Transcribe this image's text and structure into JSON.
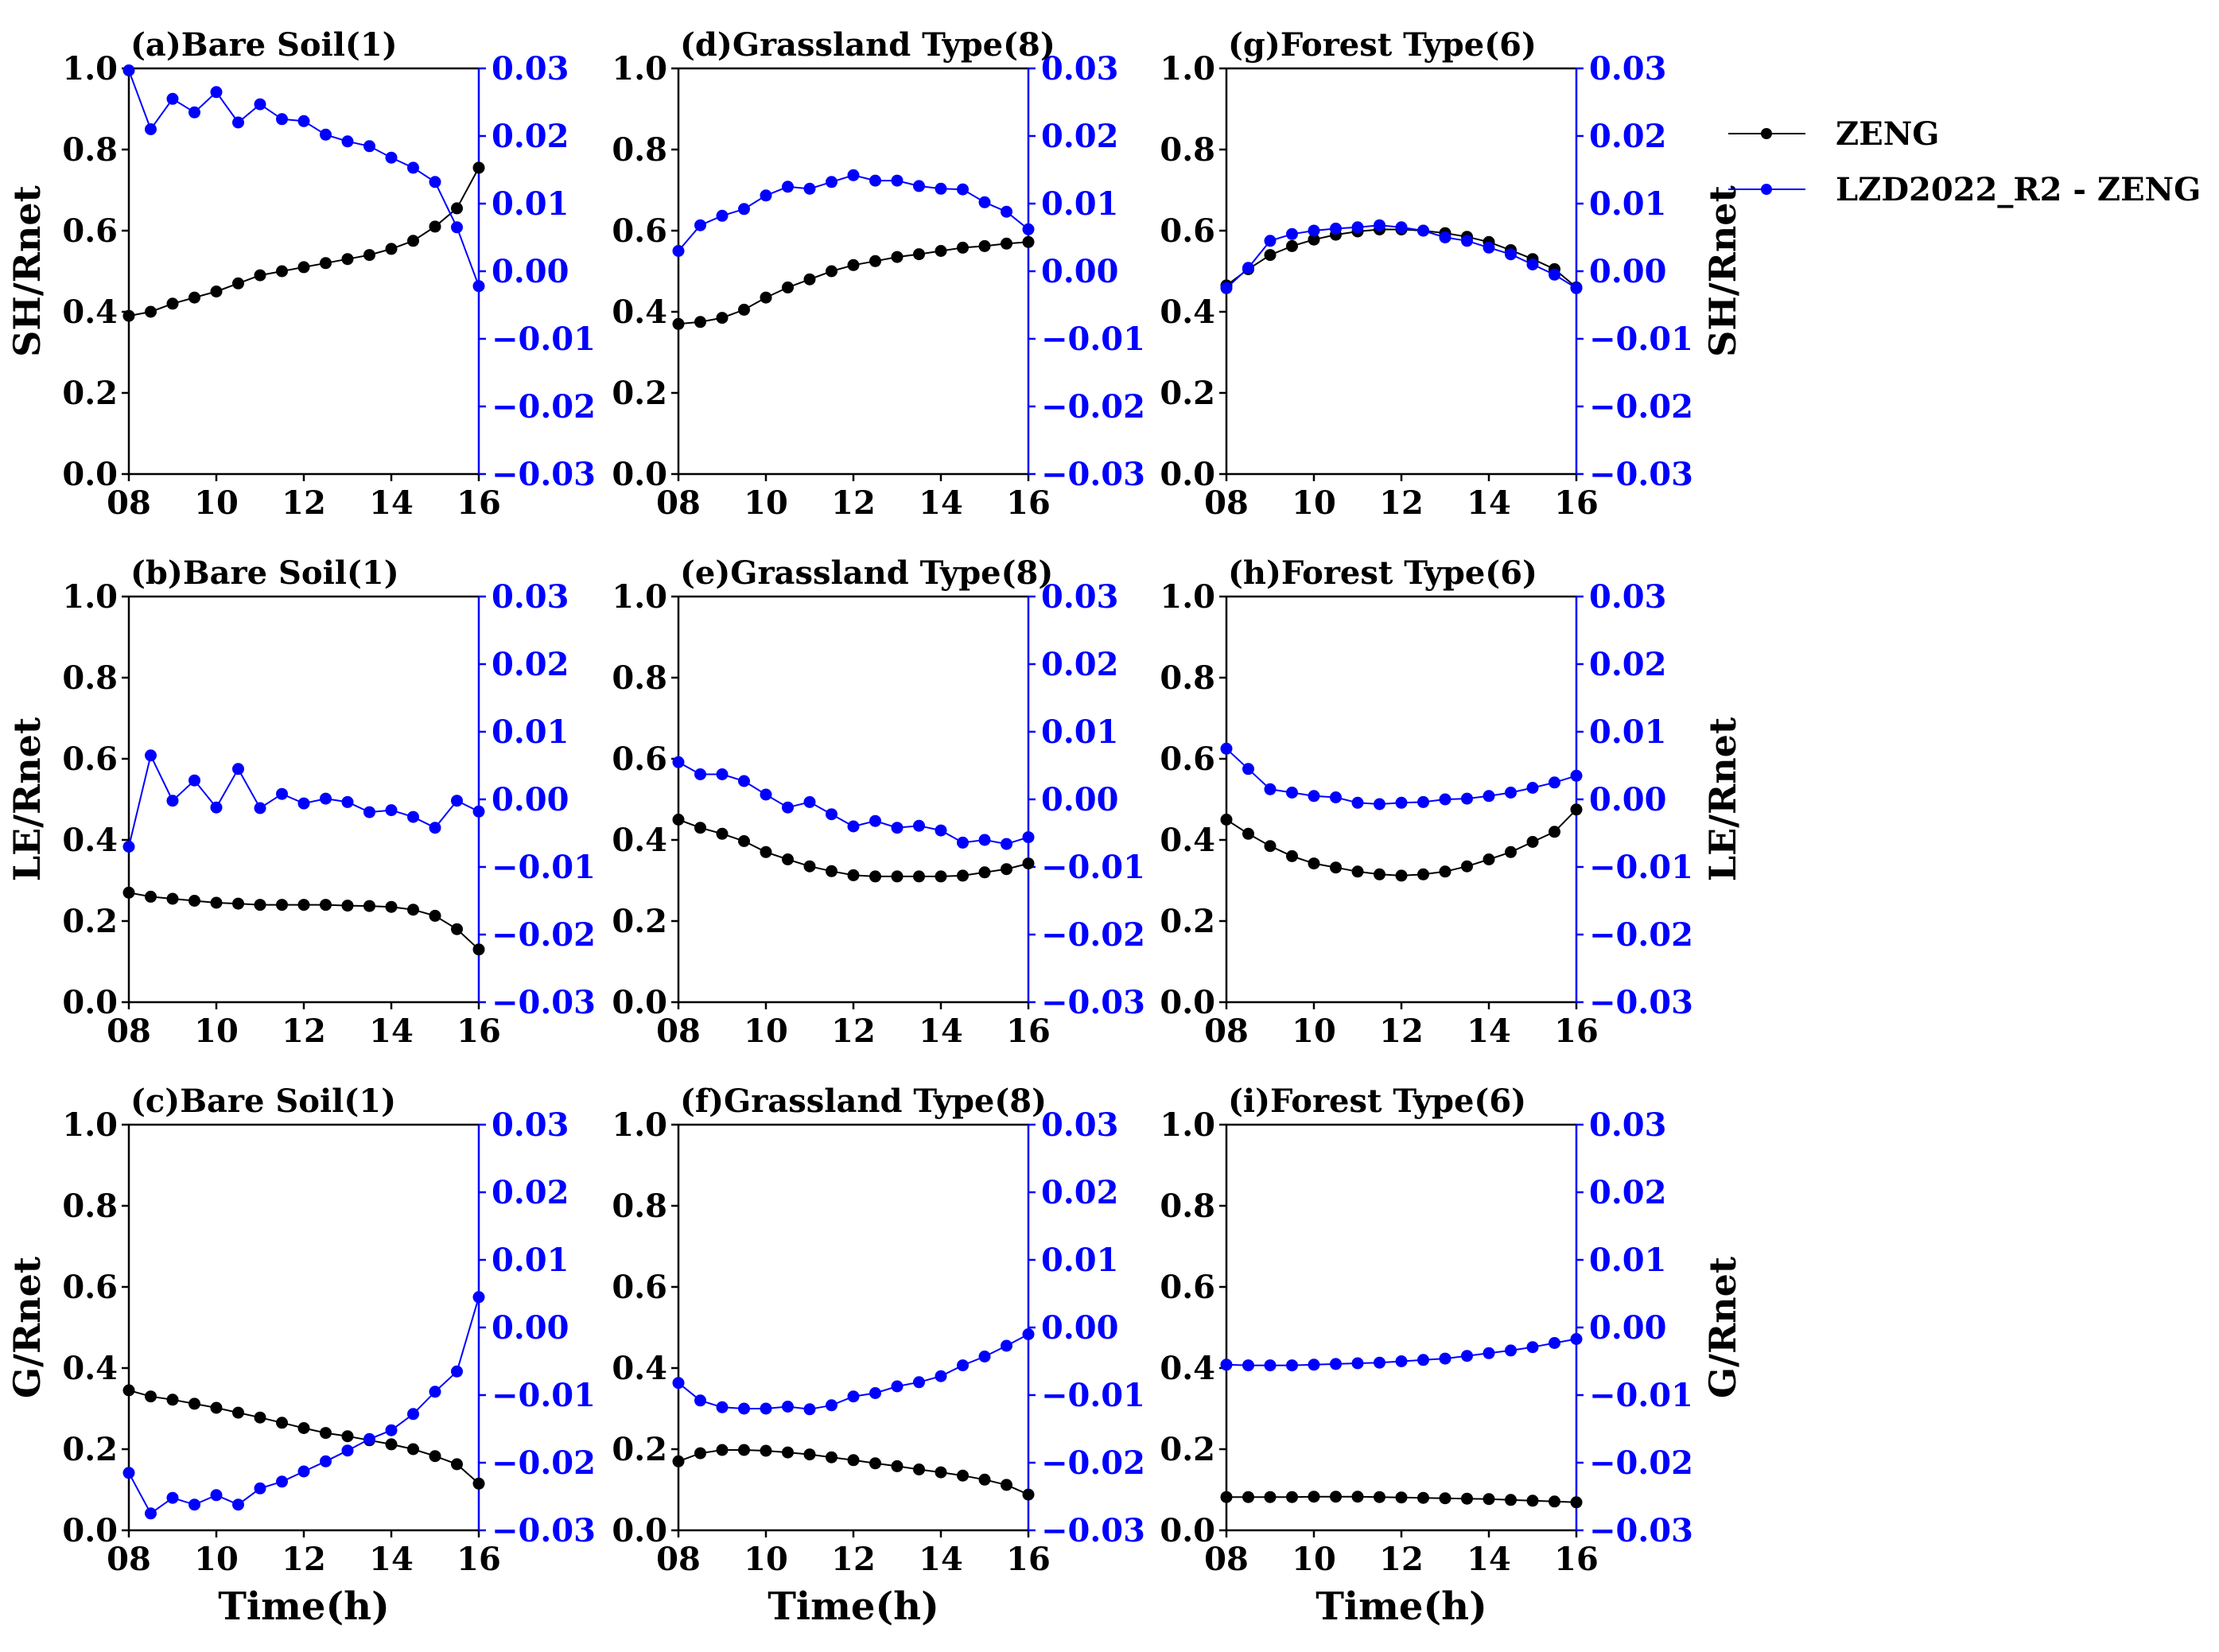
{
  "legend": {
    "entries": [
      {
        "label": "ZENG",
        "color": "#000000"
      },
      {
        "label": "LZD2022_R2 - ZENG",
        "color": "#0000ff"
      }
    ]
  },
  "colors": {
    "zeng": "#000000",
    "diff": "#0000ff",
    "axis": "#000000",
    "right_axis": "#0000ff"
  },
  "chart_data": [
    {
      "id": "a",
      "type": "line",
      "title": "(a)Bare Soil(1)",
      "ylabel_left": "SH/Rnet",
      "ylabel_right": "",
      "xlabel": "",
      "xlim": [
        8,
        16
      ],
      "ylim_left": [
        0,
        1
      ],
      "ylim_right": [
        -0.03,
        0.03
      ],
      "xticks": [
        "08",
        "10",
        "12",
        "14",
        "16"
      ],
      "yticks_left": [
        "0.0",
        "0.2",
        "0.4",
        "0.6",
        "0.8",
        "1.0"
      ],
      "yticks_right": [
        "−0.03",
        "−0.02",
        "−0.01",
        "0.00",
        "0.01",
        "0.02",
        "0.03"
      ],
      "x": [
        8,
        8.5,
        9,
        9.5,
        10,
        10.5,
        11,
        11.5,
        12,
        12.5,
        13,
        13.5,
        14,
        14.5,
        15,
        15.5,
        16
      ],
      "series": [
        {
          "name": "ZENG",
          "axis": "left",
          "values": [
            0.39,
            0.4,
            0.42,
            0.435,
            0.45,
            0.47,
            0.49,
            0.5,
            0.51,
            0.52,
            0.53,
            0.54,
            0.555,
            0.575,
            0.61,
            0.655,
            0.755
          ]
        },
        {
          "name": "LZD2022_R2 - ZENG",
          "axis": "right",
          "values": [
            0.0297,
            0.021,
            0.0255,
            0.0235,
            0.0265,
            0.022,
            0.0247,
            0.0225,
            0.0222,
            0.0202,
            0.0192,
            0.0185,
            0.0168,
            0.0153,
            0.0132,
            0.0065,
            -0.0022
          ]
        }
      ]
    },
    {
      "id": "b",
      "type": "line",
      "title": "(b)Bare Soil(1)",
      "ylabel_left": "LE/Rnet",
      "ylabel_right": "",
      "xlabel": "",
      "xlim": [
        8,
        16
      ],
      "ylim_left": [
        0,
        1
      ],
      "ylim_right": [
        -0.03,
        0.03
      ],
      "xticks": [
        "08",
        "10",
        "12",
        "14",
        "16"
      ],
      "yticks_left": [
        "0.0",
        "0.2",
        "0.4",
        "0.6",
        "0.8",
        "1.0"
      ],
      "yticks_right": [
        "−0.03",
        "−0.02",
        "−0.01",
        "0.00",
        "0.01",
        "0.02",
        "0.03"
      ],
      "x": [
        8,
        8.5,
        9,
        9.5,
        10,
        10.5,
        11,
        11.5,
        12,
        12.5,
        13,
        13.5,
        14,
        14.5,
        15,
        15.5,
        16
      ],
      "series": [
        {
          "name": "ZENG",
          "axis": "left",
          "values": [
            0.27,
            0.26,
            0.255,
            0.25,
            0.245,
            0.243,
            0.24,
            0.24,
            0.24,
            0.24,
            0.238,
            0.237,
            0.235,
            0.228,
            0.213,
            0.18,
            0.13
          ]
        },
        {
          "name": "LZD2022_R2 - ZENG",
          "axis": "right",
          "values": [
            -0.007,
            0.0065,
            -0.0002,
            0.0028,
            -0.0012,
            0.0045,
            -0.0013,
            0.0008,
            -0.0006,
            0.0001,
            -0.0004,
            -0.0019,
            -0.0016,
            -0.0026,
            -0.0042,
            -0.0002,
            -0.0018
          ]
        }
      ]
    },
    {
      "id": "c",
      "type": "line",
      "title": "(c)Bare Soil(1)",
      "ylabel_left": "G/Rnet",
      "ylabel_right": "",
      "xlabel": "Time(h)",
      "xlim": [
        8,
        16
      ],
      "ylim_left": [
        0,
        1
      ],
      "ylim_right": [
        -0.03,
        0.03
      ],
      "xticks": [
        "08",
        "10",
        "12",
        "14",
        "16"
      ],
      "yticks_left": [
        "0.0",
        "0.2",
        "0.4",
        "0.6",
        "0.8",
        "1.0"
      ],
      "yticks_right": [
        "−0.03",
        "−0.02",
        "−0.01",
        "0.00",
        "0.01",
        "0.02",
        "0.03"
      ],
      "x": [
        8,
        8.5,
        9,
        9.5,
        10,
        10.5,
        11,
        11.5,
        12,
        12.5,
        13,
        13.5,
        14,
        14.5,
        15,
        15.5,
        16
      ],
      "series": [
        {
          "name": "ZENG",
          "axis": "left",
          "values": [
            0.345,
            0.33,
            0.322,
            0.312,
            0.302,
            0.29,
            0.278,
            0.265,
            0.252,
            0.24,
            0.232,
            0.222,
            0.212,
            0.2,
            0.183,
            0.163,
            0.115
          ]
        },
        {
          "name": "LZD2022_R2 - ZENG",
          "axis": "right",
          "values": [
            -0.0215,
            -0.0275,
            -0.0252,
            -0.0262,
            -0.0248,
            -0.0262,
            -0.0238,
            -0.0228,
            -0.0213,
            -0.0198,
            -0.0182,
            -0.0165,
            -0.0152,
            -0.0128,
            -0.0095,
            -0.0065,
            0.0045
          ]
        }
      ]
    },
    {
      "id": "d",
      "type": "line",
      "title": "(d)Grassland Type(8)",
      "ylabel_left": "",
      "ylabel_right": "",
      "xlabel": "",
      "xlim": [
        8,
        16
      ],
      "ylim_left": [
        0,
        1
      ],
      "ylim_right": [
        -0.03,
        0.03
      ],
      "xticks": [
        "08",
        "10",
        "12",
        "14",
        "16"
      ],
      "yticks_left": [
        "0.0",
        "0.2",
        "0.4",
        "0.6",
        "0.8",
        "1.0"
      ],
      "yticks_right": [
        "−0.03",
        "−0.02",
        "−0.01",
        "0.00",
        "0.01",
        "0.02",
        "0.03"
      ],
      "x": [
        8,
        8.5,
        9,
        9.5,
        10,
        10.5,
        11,
        11.5,
        12,
        12.5,
        13,
        13.5,
        14,
        14.5,
        15,
        15.5,
        16
      ],
      "series": [
        {
          "name": "ZENG",
          "axis": "left",
          "values": [
            0.37,
            0.375,
            0.385,
            0.405,
            0.435,
            0.46,
            0.48,
            0.5,
            0.515,
            0.525,
            0.535,
            0.542,
            0.55,
            0.558,
            0.562,
            0.568,
            0.572
          ]
        },
        {
          "name": "LZD2022_R2 - ZENG",
          "axis": "right",
          "values": [
            0.003,
            0.0068,
            0.0082,
            0.0092,
            0.0112,
            0.0125,
            0.0122,
            0.0132,
            0.0142,
            0.0134,
            0.0134,
            0.0126,
            0.0122,
            0.0121,
            0.0102,
            0.0088,
            0.0062
          ]
        }
      ]
    },
    {
      "id": "e",
      "type": "line",
      "title": "(e)Grassland Type(8)",
      "ylabel_left": "",
      "ylabel_right": "",
      "xlabel": "",
      "xlim": [
        8,
        16
      ],
      "ylim_left": [
        0,
        1
      ],
      "ylim_right": [
        -0.03,
        0.03
      ],
      "xticks": [
        "08",
        "10",
        "12",
        "14",
        "16"
      ],
      "yticks_left": [
        "0.0",
        "0.2",
        "0.4",
        "0.6",
        "0.8",
        "1.0"
      ],
      "yticks_right": [
        "−0.03",
        "−0.02",
        "−0.01",
        "0.00",
        "0.01",
        "0.02",
        "0.03"
      ],
      "x": [
        8,
        8.5,
        9,
        9.5,
        10,
        10.5,
        11,
        11.5,
        12,
        12.5,
        13,
        13.5,
        14,
        14.5,
        15,
        15.5,
        16
      ],
      "series": [
        {
          "name": "ZENG",
          "axis": "left",
          "values": [
            0.45,
            0.43,
            0.415,
            0.397,
            0.37,
            0.352,
            0.335,
            0.323,
            0.313,
            0.31,
            0.31,
            0.31,
            0.31,
            0.312,
            0.32,
            0.328,
            0.342
          ]
        },
        {
          "name": "LZD2022_R2 - ZENG",
          "axis": "right",
          "values": [
            0.0055,
            0.0037,
            0.0037,
            0.0027,
            0.0007,
            -0.0012,
            -0.0004,
            -0.0022,
            -0.004,
            -0.0032,
            -0.0042,
            -0.0039,
            -0.0046,
            -0.0064,
            -0.006,
            -0.0066,
            -0.0056
          ]
        }
      ]
    },
    {
      "id": "f",
      "type": "line",
      "title": "(f)Grassland Type(8)",
      "ylabel_left": "",
      "ylabel_right": "",
      "xlabel": "Time(h)",
      "xlim": [
        8,
        16
      ],
      "ylim_left": [
        0,
        1
      ],
      "ylim_right": [
        -0.03,
        0.03
      ],
      "xticks": [
        "08",
        "10",
        "12",
        "14",
        "16"
      ],
      "yticks_left": [
        "0.0",
        "0.2",
        "0.4",
        "0.6",
        "0.8",
        "1.0"
      ],
      "yticks_right": [
        "−0.03",
        "−0.02",
        "−0.01",
        "0.00",
        "0.01",
        "0.02",
        "0.03"
      ],
      "x": [
        8,
        8.5,
        9,
        9.5,
        10,
        10.5,
        11,
        11.5,
        12,
        12.5,
        13,
        13.5,
        14,
        14.5,
        15,
        15.5,
        16
      ],
      "series": [
        {
          "name": "ZENG",
          "axis": "left",
          "values": [
            0.17,
            0.19,
            0.198,
            0.198,
            0.196,
            0.192,
            0.187,
            0.18,
            0.173,
            0.165,
            0.158,
            0.15,
            0.143,
            0.135,
            0.125,
            0.112,
            0.088
          ]
        },
        {
          "name": "LZD2022_R2 - ZENG",
          "axis": "right",
          "values": [
            -0.0082,
            -0.0108,
            -0.0118,
            -0.012,
            -0.012,
            -0.0117,
            -0.0121,
            -0.0115,
            -0.0102,
            -0.0097,
            -0.0087,
            -0.0081,
            -0.0072,
            -0.0056,
            -0.0043,
            -0.0027,
            -0.001
          ]
        }
      ]
    },
    {
      "id": "g",
      "type": "line",
      "title": "(g)Forest Type(6)",
      "ylabel_left": "",
      "ylabel_right": "SH/Rnet",
      "xlabel": "",
      "xlim": [
        8,
        16
      ],
      "ylim_left": [
        0,
        1
      ],
      "ylim_right": [
        -0.03,
        0.03
      ],
      "xticks": [
        "08",
        "10",
        "12",
        "14",
        "16"
      ],
      "yticks_left": [
        "0.0",
        "0.2",
        "0.4",
        "0.6",
        "0.8",
        "1.0"
      ],
      "yticks_right": [
        "−0.03",
        "−0.02",
        "−0.01",
        "0.00",
        "0.01",
        "0.02",
        "0.03"
      ],
      "x": [
        8,
        8.5,
        9,
        9.5,
        10,
        10.5,
        11,
        11.5,
        12,
        12.5,
        13,
        13.5,
        14,
        14.5,
        15,
        15.5,
        16
      ],
      "series": [
        {
          "name": "ZENG",
          "axis": "left",
          "values": [
            0.465,
            0.505,
            0.54,
            0.562,
            0.578,
            0.59,
            0.598,
            0.603,
            0.603,
            0.6,
            0.594,
            0.585,
            0.572,
            0.552,
            0.53,
            0.505,
            0.46
          ]
        },
        {
          "name": "LZD2022_R2 - ZENG",
          "axis": "right",
          "values": [
            -0.0025,
            0.0005,
            0.0045,
            0.0055,
            0.006,
            0.0063,
            0.0065,
            0.0068,
            0.0065,
            0.006,
            0.005,
            0.0045,
            0.0035,
            0.0025,
            0.001,
            -0.0005,
            -0.0025
          ]
        }
      ]
    },
    {
      "id": "h",
      "type": "line",
      "title": "(h)Forest Type(6)",
      "ylabel_left": "",
      "ylabel_right": "LE/Rnet",
      "xlabel": "",
      "xlim": [
        8,
        16
      ],
      "ylim_left": [
        0,
        1
      ],
      "ylim_right": [
        -0.03,
        0.03
      ],
      "xticks": [
        "08",
        "10",
        "12",
        "14",
        "16"
      ],
      "yticks_left": [
        "0.0",
        "0.2",
        "0.4",
        "0.6",
        "0.8",
        "1.0"
      ],
      "yticks_right": [
        "−0.03",
        "−0.02",
        "−0.01",
        "0.00",
        "0.01",
        "0.02",
        "0.03"
      ],
      "x": [
        8,
        8.5,
        9,
        9.5,
        10,
        10.5,
        11,
        11.5,
        12,
        12.5,
        13,
        13.5,
        14,
        14.5,
        15,
        15.5,
        16
      ],
      "series": [
        {
          "name": "ZENG",
          "axis": "left",
          "values": [
            0.45,
            0.415,
            0.385,
            0.36,
            0.342,
            0.332,
            0.322,
            0.315,
            0.312,
            0.315,
            0.322,
            0.335,
            0.352,
            0.37,
            0.395,
            0.42,
            0.475
          ]
        },
        {
          "name": "LZD2022_R2 - ZENG",
          "axis": "right",
          "values": [
            0.0075,
            0.0045,
            0.0015,
            0.001,
            0.0005,
            0.0003,
            -0.0005,
            -0.0007,
            -0.0005,
            -0.0004,
            0.0,
            0.0001,
            0.0005,
            0.001,
            0.0017,
            0.0025,
            0.0035
          ]
        }
      ]
    },
    {
      "id": "i",
      "type": "line",
      "title": "(i)Forest Type(6)",
      "ylabel_left": "",
      "ylabel_right": "G/Rnet",
      "xlabel": "Time(h)",
      "xlim": [
        8,
        16
      ],
      "ylim_left": [
        0,
        1
      ],
      "ylim_right": [
        -0.03,
        0.03
      ],
      "xticks": [
        "08",
        "10",
        "12",
        "14",
        "16"
      ],
      "yticks_left": [
        "0.0",
        "0.2",
        "0.4",
        "0.6",
        "0.8",
        "1.0"
      ],
      "yticks_right": [
        "−0.03",
        "−0.02",
        "−0.01",
        "0.00",
        "0.01",
        "0.02",
        "0.03"
      ],
      "x": [
        8,
        8.5,
        9,
        9.5,
        10,
        10.5,
        11,
        11.5,
        12,
        12.5,
        13,
        13.5,
        14,
        14.5,
        15,
        15.5,
        16
      ],
      "series": [
        {
          "name": "ZENG",
          "axis": "left",
          "values": [
            0.082,
            0.082,
            0.082,
            0.082,
            0.083,
            0.083,
            0.083,
            0.082,
            0.081,
            0.08,
            0.079,
            0.078,
            0.077,
            0.075,
            0.073,
            0.071,
            0.069
          ]
        },
        {
          "name": "LZD2022_R2 - ZENG",
          "axis": "right",
          "values": [
            -0.0055,
            -0.0056,
            -0.0056,
            -0.0056,
            -0.0055,
            -0.0054,
            -0.0053,
            -0.0052,
            -0.005,
            -0.0048,
            -0.0046,
            -0.0042,
            -0.0038,
            -0.0034,
            -0.0029,
            -0.0023,
            -0.0017
          ]
        }
      ]
    }
  ]
}
